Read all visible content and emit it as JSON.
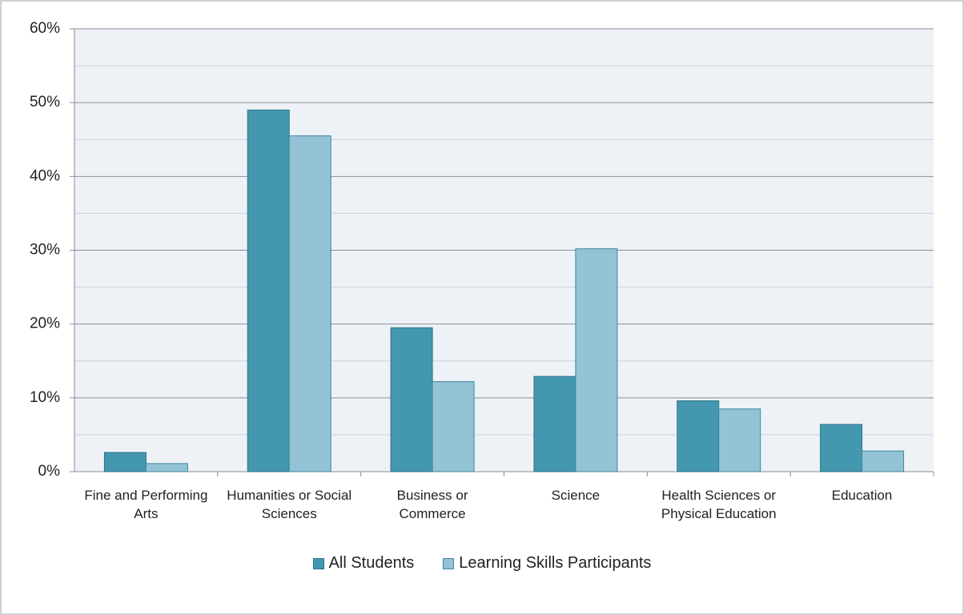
{
  "chart_data": {
    "type": "bar",
    "categories": [
      "Fine and Performing Arts",
      "Humanities or Social Sciences",
      "Business or Commerce",
      "Science",
      "Health Sciences or Physical Education",
      "Education"
    ],
    "series": [
      {
        "name": "All Students",
        "color": "#4398b0",
        "values": [
          2.6,
          49.0,
          19.5,
          12.9,
          9.6,
          6.4
        ]
      },
      {
        "name": "Learning Skills Participants",
        "color": "#93c3d4",
        "values": [
          1.1,
          45.5,
          12.2,
          30.2,
          8.5,
          2.8
        ]
      }
    ],
    "ylim": [
      0,
      60
    ],
    "yticks": [
      {
        "value": 0,
        "label": "0%"
      },
      {
        "value": 10,
        "label": "10%"
      },
      {
        "value": 20,
        "label": "20%"
      },
      {
        "value": 30,
        "label": "30%"
      },
      {
        "value": 40,
        "label": "40%"
      },
      {
        "value": 50,
        "label": "50%"
      },
      {
        "value": 60,
        "label": "60%"
      }
    ],
    "minor_yticks": [
      5,
      15,
      25,
      35,
      45,
      55
    ],
    "grid": true,
    "legend": "bottom"
  }
}
